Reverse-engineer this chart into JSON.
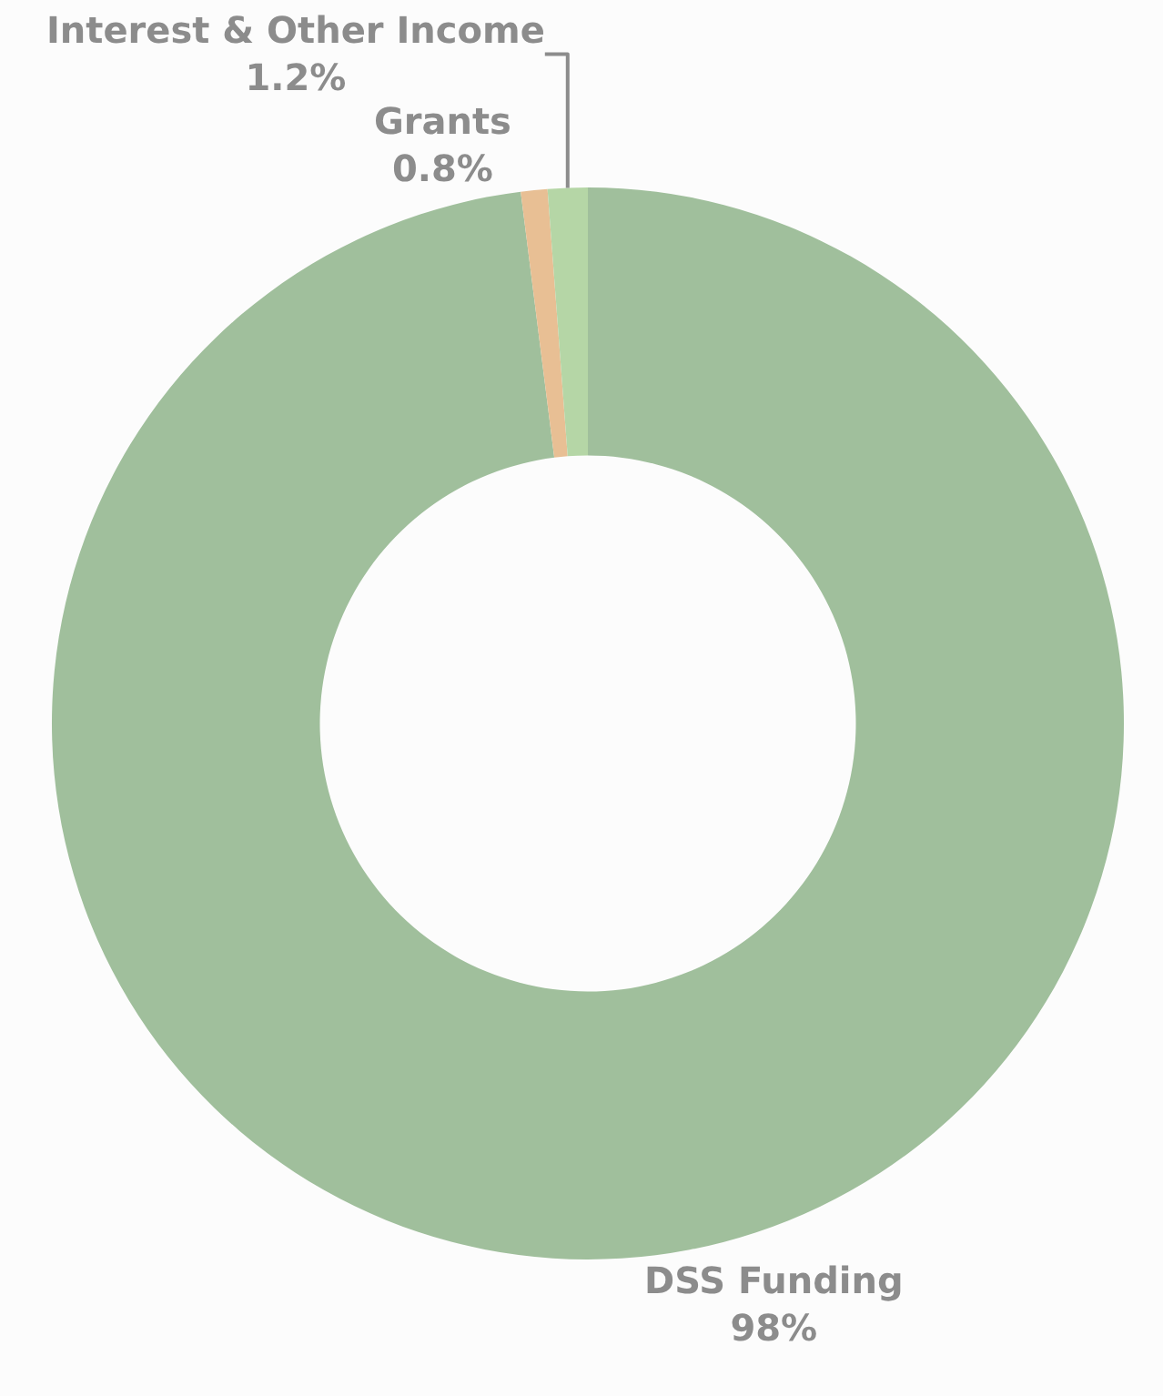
{
  "chart_data": {
    "type": "donut",
    "categories": [
      "DSS Funding",
      "Grants",
      "Interest & Other Income"
    ],
    "values": [
      98,
      0.8,
      1.2
    ],
    "value_labels": [
      "98%",
      "0.8%",
      "1.2%"
    ],
    "colors": [
      "#a0bf9c",
      "#e8bf94",
      "#b5d6a6"
    ],
    "legend": false
  }
}
